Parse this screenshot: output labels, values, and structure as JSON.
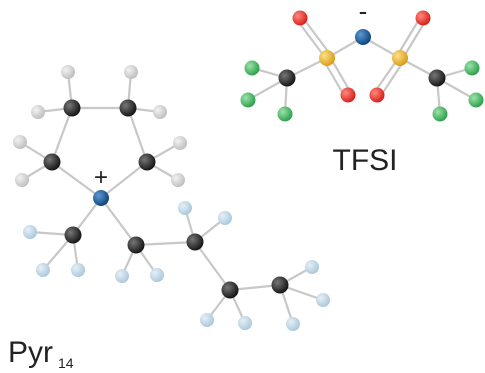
{
  "anion": {
    "charge": "-",
    "label": "TFSI"
  },
  "cation": {
    "charge": "+",
    "label": "Pyr",
    "subscript": "14"
  }
}
